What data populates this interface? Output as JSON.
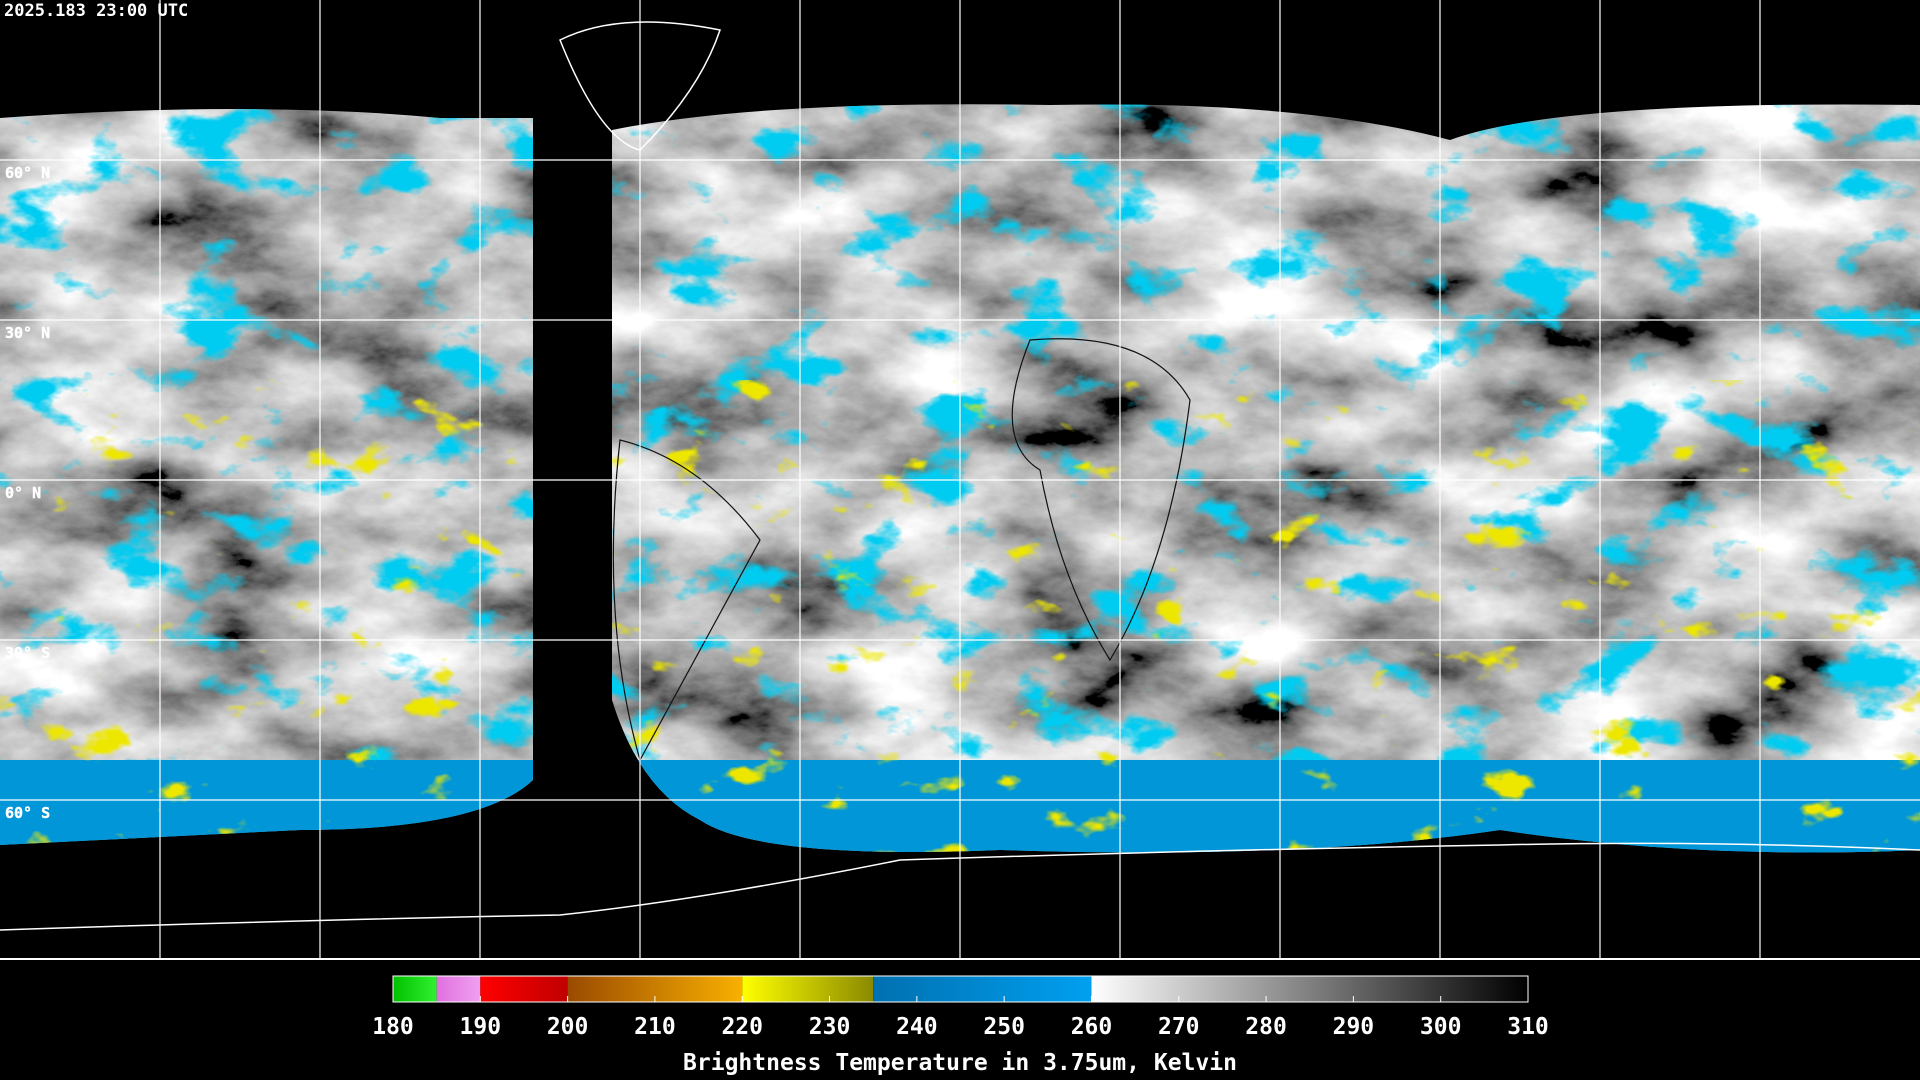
{
  "header": {
    "timestamp": "2025.183 23:00 UTC"
  },
  "map": {
    "lat_labels": [
      {
        "value": 60,
        "label": "60° N"
      },
      {
        "value": 30,
        "label": "30° N"
      },
      {
        "value": 0,
        "label": "0° N"
      },
      {
        "value": -30,
        "label": "30° S"
      },
      {
        "value": -60,
        "label": "60° S"
      }
    ],
    "lon_lines": [
      -150,
      -120,
      -90,
      -60,
      -30,
      0,
      30,
      60,
      90,
      120,
      150
    ],
    "lon_range": [
      -180,
      180
    ],
    "lat_range": [
      90,
      -90
    ]
  },
  "colorbar": {
    "title": "Brightness Temperature in 3.75um, Kelvin",
    "range": [
      180,
      310
    ],
    "ticks": [
      180,
      190,
      200,
      210,
      220,
      230,
      240,
      250,
      260,
      270,
      280,
      290,
      300,
      310
    ],
    "segments": [
      {
        "from": 180,
        "to": 185,
        "colors": [
          "#00c000",
          "#30f030"
        ]
      },
      {
        "from": 185,
        "to": 190,
        "colors": [
          "#e070e0",
          "#f0a0f0"
        ]
      },
      {
        "from": 190,
        "to": 200,
        "colors": [
          "#ff0000",
          "#c00000"
        ]
      },
      {
        "from": 200,
        "to": 220,
        "colors": [
          "#9a4a00",
          "#f8b000"
        ]
      },
      {
        "from": 220,
        "to": 235,
        "colors": [
          "#ffff00",
          "#8a8a00"
        ]
      },
      {
        "from": 235,
        "to": 260,
        "colors": [
          "#0070b0",
          "#00a0f0"
        ]
      },
      {
        "from": 260,
        "to": 310,
        "colors": [
          "#ffffff",
          "#000000"
        ]
      }
    ]
  }
}
